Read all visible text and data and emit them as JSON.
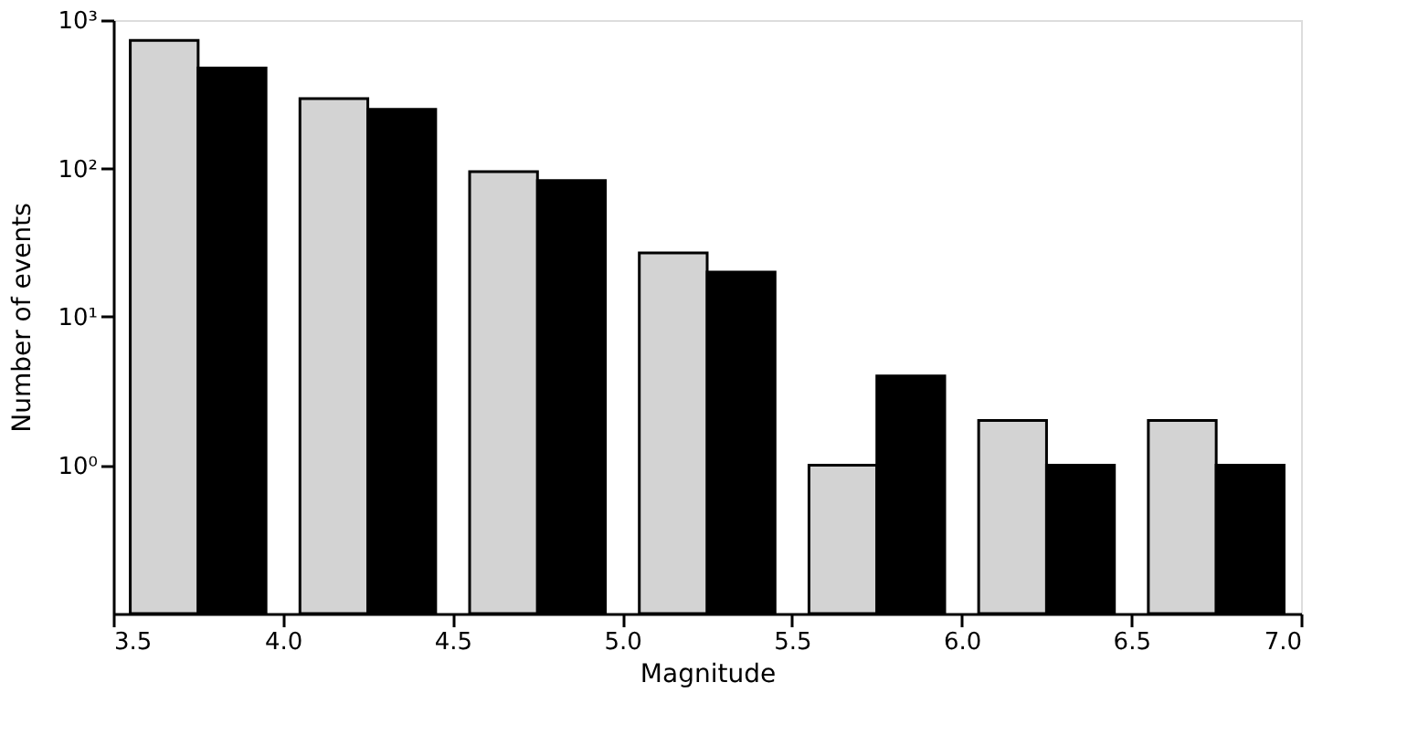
{
  "chart_data": {
    "type": "bar",
    "xlabel": "Magnitude",
    "ylabel": "Number of events",
    "series": [
      {
        "color": "#d3d3d3",
        "x": [
          3.65,
          4.15,
          4.65,
          5.15,
          5.65,
          6.15,
          6.65
        ],
        "values": [
          730,
          296,
          95,
          27,
          1,
          2,
          2
        ]
      },
      {
        "color": "#000000",
        "x": [
          3.85,
          4.35,
          4.85,
          5.35,
          5.85,
          6.35,
          6.85
        ],
        "values": [
          475,
          250,
          83,
          20,
          4,
          1,
          1
        ]
      }
    ],
    "log": "y",
    "grid": false,
    "xlim": [
      3.5,
      7.0
    ],
    "xticks": [
      3.5,
      {
        "value": 4.0,
        "label": "4.0"
      },
      4.5,
      {
        "value": 5.0,
        "label": "5.0"
      },
      5.5,
      {
        "value": 6.0,
        "label": "6.0"
      },
      6.5,
      {
        "value": 7.0,
        "label": "7.0"
      }
    ],
    "ylim": [
      0.1,
      1000
    ],
    "yticks": [
      {
        "value": 1,
        "label": "10⁰"
      },
      {
        "value": 10,
        "label": "10¹"
      },
      {
        "value": 100,
        "label": "10²"
      },
      {
        "value": 1000,
        "label": "10³"
      }
    ]
  }
}
